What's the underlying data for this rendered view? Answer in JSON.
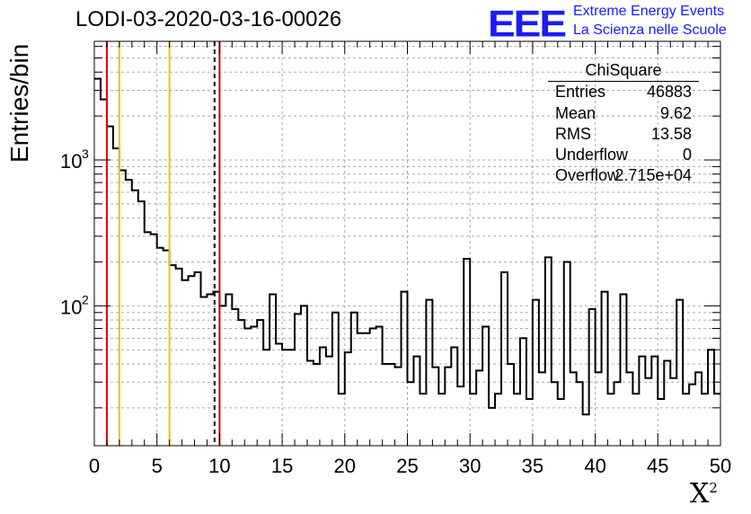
{
  "chart_data": {
    "type": "histogram",
    "title": "LODI-03-2020-03-16-00026",
    "xlabel": "X",
    "xlabel_superscript": "2",
    "ylabel": "Entries/bin",
    "xlim": [
      0,
      50
    ],
    "ylim": [
      11,
      6500
    ],
    "yscale": "log",
    "grid": true,
    "x_ticks": [
      "0",
      "5",
      "10",
      "15",
      "20",
      "25",
      "30",
      "35",
      "40",
      "45",
      "50"
    ],
    "y_tick_labels": [
      {
        "base": "10",
        "exp": "3",
        "value": 1000
      },
      {
        "base": "10",
        "exp": "2",
        "value": 100
      }
    ],
    "bin_width": 0.5,
    "bins_start": 0,
    "counts": [
      3600,
      2600,
      1700,
      1200,
      850,
      730,
      620,
      520,
      320,
      310,
      250,
      240,
      190,
      180,
      150,
      160,
      170,
      115,
      120,
      125,
      100,
      120,
      95,
      80,
      70,
      72,
      80,
      50,
      120,
      55,
      50,
      50,
      88,
      100,
      42,
      40,
      52,
      45,
      90,
      25,
      48,
      90,
      65,
      65,
      70,
      72,
      40,
      40,
      38,
      125,
      30,
      45,
      25,
      110,
      38,
      25,
      38,
      52,
      28,
      210,
      25,
      36,
      72,
      20,
      25,
      170,
      40,
      25,
      60,
      23,
      110,
      35,
      215,
      30,
      23,
      200,
      35,
      30,
      18,
      95,
      35,
      125,
      25,
      30,
      120,
      35,
      25,
      45,
      32,
      45,
      23,
      42,
      32,
      110,
      25,
      29,
      35,
      25,
      50,
      25
    ],
    "vertical_lines": [
      {
        "x": 1,
        "color": "#e00000",
        "style": "solid"
      },
      {
        "x": 2,
        "color": "#f5c000",
        "style": "solid"
      },
      {
        "x": 6,
        "color": "#f5c000",
        "style": "solid"
      },
      {
        "x": 9.6,
        "color": "#000000",
        "style": "dashed"
      },
      {
        "x": 10,
        "color": "#e00000",
        "style": "solid"
      }
    ],
    "stats": {
      "title": "ChiSquare",
      "rows": [
        {
          "label": "Entries",
          "value": "46883"
        },
        {
          "label": "Mean",
          "value": "9.62"
        },
        {
          "label": "RMS",
          "value": "13.58"
        },
        {
          "label": "Underflow",
          "value": "0"
        },
        {
          "label": "Overflow",
          "value": "2.715e+04"
        }
      ]
    }
  },
  "logo": {
    "text": "EEE",
    "line1": "Extreme Energy Events",
    "line2": "La Scienza nelle Scuole",
    "color": "#1a1aff"
  }
}
